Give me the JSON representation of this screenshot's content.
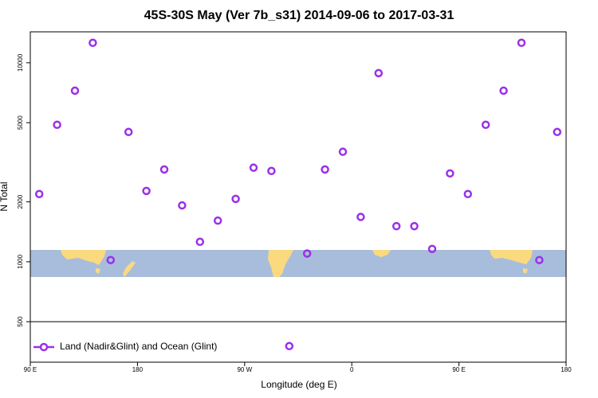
{
  "chart_data": {
    "type": "scatter",
    "title": "45S-30S May (Ver 7b_s31)   2014-09-06 to 2017-03-31",
    "xlabel": "Longitude (deg E)",
    "ylabel": "N Total",
    "log_y": true,
    "xlim": [
      90,
      540
    ],
    "xticks": [
      {
        "value": 90,
        "label": "90 E"
      },
      {
        "value": 180,
        "label": "180"
      },
      {
        "value": 270,
        "label": "90 W"
      },
      {
        "value": 360,
        "label": "0"
      },
      {
        "value": 450,
        "label": "90 E"
      },
      {
        "value": 540,
        "label": "180"
      }
    ],
    "ylim": [
      313,
      14300
    ],
    "yticks": [
      500,
      1000,
      2000,
      5000,
      10000
    ],
    "reference_line": 500,
    "legend_position": "bottom-left",
    "series": [
      {
        "name": "Land (Nadir&Glint) and Ocean (Glint)",
        "color": "#9b30e8",
        "x": [
          97.5,
          112.5,
          127.5,
          142.5,
          157.5,
          172.5,
          187.5,
          202.5,
          217.5,
          232.5,
          247.5,
          262.5,
          277.5,
          292.5,
          307.5,
          322.5,
          337.5,
          352.5,
          367.5,
          382.5,
          397.5,
          412.5,
          427.5,
          442.5,
          457.5,
          472.5,
          487.5,
          502.5,
          517.5,
          532.5
        ],
        "values": [
          2190,
          4880,
          7240,
          12600,
          1020,
          4490,
          2270,
          2910,
          1920,
          1260,
          1610,
          2070,
          2970,
          2860,
          377,
          1100,
          2910,
          3570,
          1680,
          8870,
          1510,
          1510,
          1160,
          2780,
          2190,
          4880,
          7240,
          12600,
          1020,
          4490
        ]
      }
    ]
  }
}
